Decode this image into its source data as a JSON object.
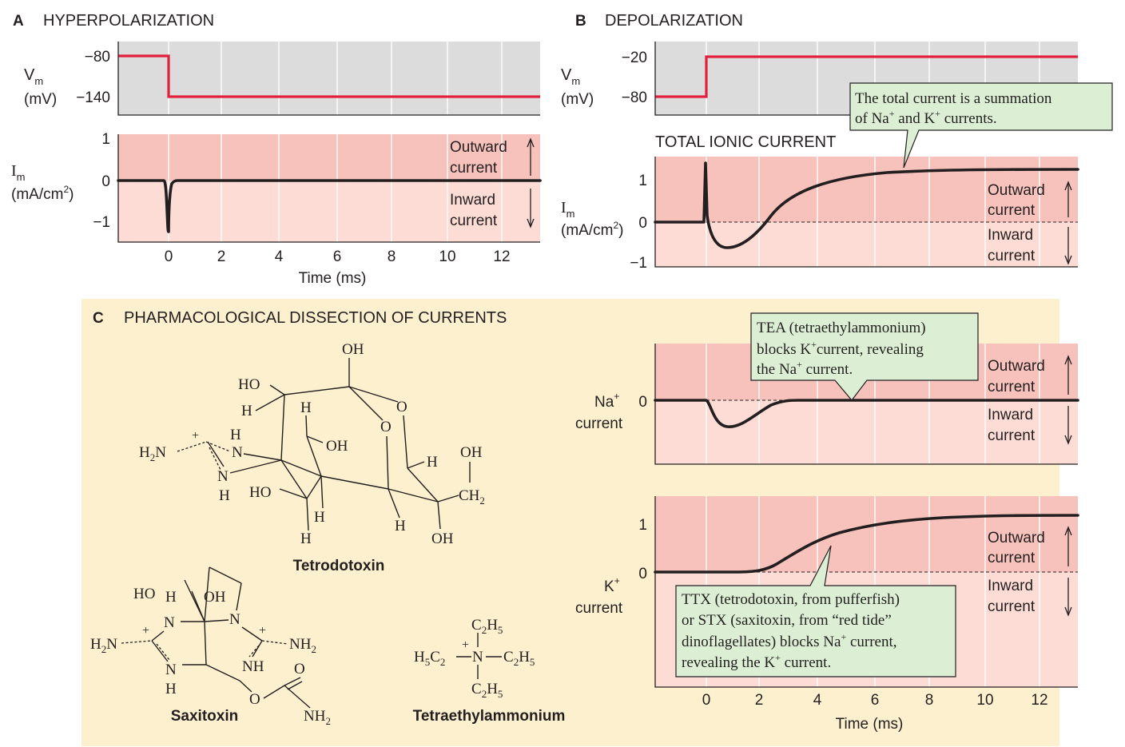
{
  "panel_a": {
    "letter": "A",
    "title": "HYPERPOLARIZATION",
    "vm_label": "V",
    "vm_sub": "m",
    "vm_unit": "(mV)",
    "vm_ticks": [
      "−80",
      "−140"
    ],
    "im_label": "I",
    "im_sub": "m",
    "im_unit_pre": "(mA/cm",
    "im_unit_sup": "2",
    "im_unit_post": ")",
    "im_ticks": [
      "1",
      "0",
      "−1"
    ],
    "outward": [
      "Outward",
      "current"
    ],
    "inward": [
      "Inward",
      "current"
    ],
    "x_ticks": [
      "0",
      "2",
      "4",
      "6",
      "8",
      "10",
      "12"
    ],
    "x_label": "Time (ms)"
  },
  "panel_b": {
    "letter": "B",
    "title": "DEPOLARIZATION",
    "vm_label": "V",
    "vm_sub": "m",
    "vm_unit": "(mV)",
    "vm_ticks": [
      "−20",
      "−80"
    ],
    "subtitle": "TOTAL IONIC CURRENT",
    "im_label": "I",
    "im_sub": "m",
    "im_unit_pre": "(mA/cm",
    "im_unit_sup": "2",
    "im_unit_post": ")",
    "im_ticks": [
      "1",
      "0",
      "−1"
    ],
    "outward": [
      "Outward",
      "current"
    ],
    "inward": [
      "Inward",
      "current"
    ],
    "callout": {
      "line1": "The total current is a summation",
      "line2_a": "of Na",
      "line2_sup1": "+",
      "line2_b": " and K",
      "line2_sup2": "+",
      "line2_c": " currents."
    }
  },
  "panel_c": {
    "letter": "C",
    "title": "PHARMACOLOGICAL DISSECTION OF CURRENTS",
    "na_label": [
      "Na",
      "+",
      "current"
    ],
    "k_label": [
      "K",
      "+",
      "current"
    ],
    "na_ticks": [
      "0"
    ],
    "k_ticks": [
      "1",
      "0"
    ],
    "outward": [
      "Outward",
      "current"
    ],
    "inward": [
      "Inward",
      "current"
    ],
    "tea_callout": {
      "line1": "TEA (tetraethylammonium)",
      "line2_a": "blocks K",
      "line2_sup": "+",
      "line2_b": "current, revealing",
      "line3_a": "the Na",
      "line3_sup": "+",
      "line3_b": " current."
    },
    "ttx_callout": {
      "line1": "TTX (tetrodotoxin, from pufferfish)",
      "line2": "or STX (saxitoxin, from “red tide”",
      "line3_a": "dinoflagellates) blocks Na",
      "line3_sup": "+",
      "line3_b": " current,",
      "line4_a": "revealing the K",
      "line4_sup": "+",
      "line4_b": " current."
    },
    "x_ticks": [
      "0",
      "2",
      "4",
      "6",
      "8",
      "10",
      "12"
    ],
    "x_label": "Time (ms)",
    "molecules": {
      "tetrodotoxin": "Tetrodotoxin",
      "saxitoxin": "Saxitoxin",
      "tea": "Tetraethylammonium"
    }
  },
  "colors": {
    "voltage_trace": "#e2203c",
    "outward_bg": "#f7c2bb",
    "inward_bg": "#fcdcd5",
    "voltage_bg": "#dcdcdd",
    "panel_c_bg": "#fdf0cf",
    "callout_bg": "#dcefd4"
  }
}
